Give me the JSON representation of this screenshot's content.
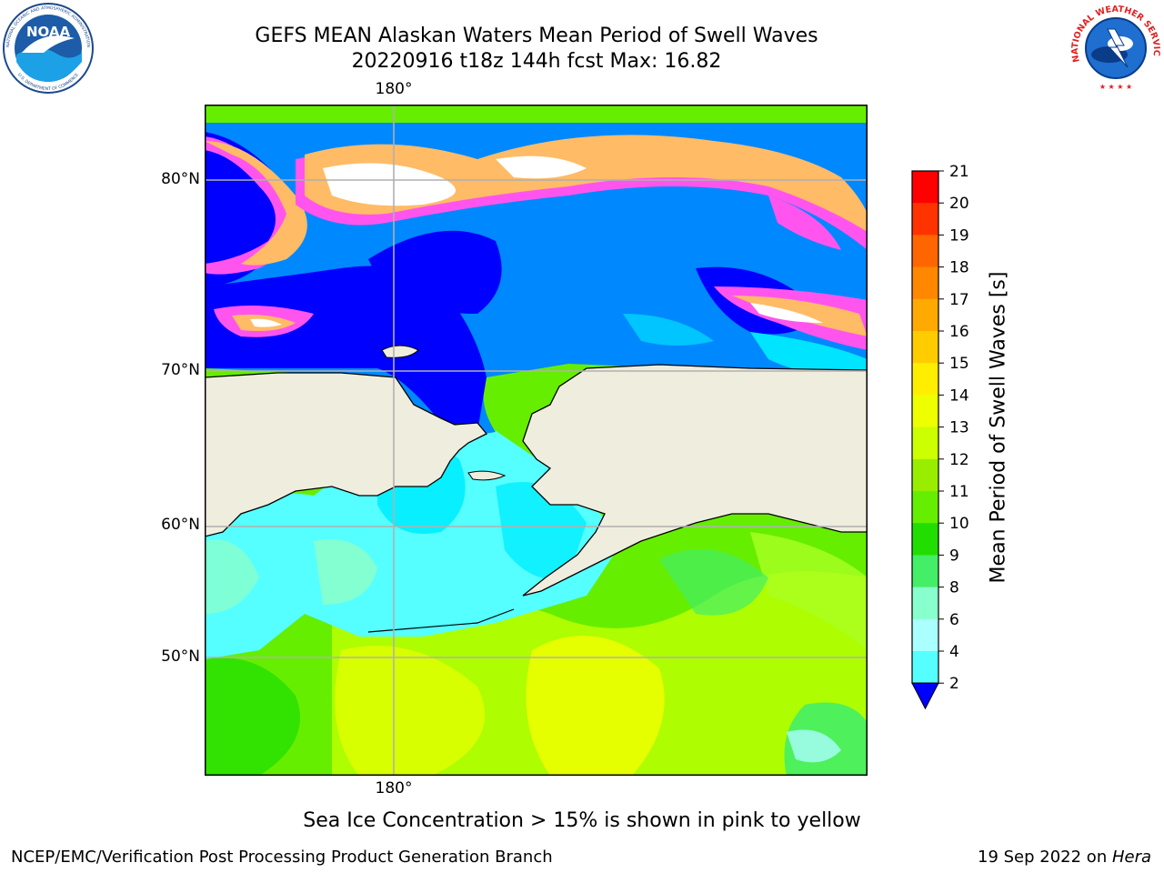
{
  "header": {
    "title_line1": "GEFS MEAN Alaskan Waters Mean Period of Swell Waves",
    "title_line2": "20220916 t18z 144h fcst   Max: 16.82"
  },
  "logos": {
    "left": "noaa-logo",
    "left_text": "NOAA",
    "left_ring_top": "NATIONAL OCEANIC AND ATMOSPHERIC ADMINISTRATION",
    "left_ring_bottom": "U.S. DEPARTMENT OF COMMERCE",
    "right": "nws-logo",
    "right_ring": "NATIONAL WEATHER SERVICE"
  },
  "map": {
    "lon_labels": [
      "180°",
      "180°"
    ],
    "lat_labels": [
      "80°N",
      "70°N",
      "60°N",
      "50°N"
    ],
    "land_color": "#efedde",
    "grid_color": "#b0b0b0"
  },
  "colorbar": {
    "label": "Mean Period of Swell Waves [s]",
    "ticks": [
      "21",
      "20",
      "19",
      "18",
      "17",
      "16",
      "15",
      "14",
      "13",
      "12",
      "11",
      "10",
      "9",
      "8",
      "6",
      "4",
      "2"
    ],
    "colors_top_to_bottom": [
      "#fe0000",
      "#ff3300",
      "#ff6600",
      "#ff8800",
      "#ffaa00",
      "#ffcc00",
      "#ffee00",
      "#eeff00",
      "#ccff00",
      "#99ee00",
      "#66ee00",
      "#22dd00",
      "#44ee66",
      "#88ffcc",
      "#aaffff",
      "#55ffff",
      "#00eeff",
      "#0088ff",
      "#0000ff"
    ]
  },
  "note": "Sea Ice Concentration > 15% is shown in pink to yellow",
  "footer": {
    "left": "NCEP/EMC/Verification Post Processing Product Generation Branch",
    "right_prefix": "19 Sep 2022 on ",
    "right_host": "Hera"
  }
}
